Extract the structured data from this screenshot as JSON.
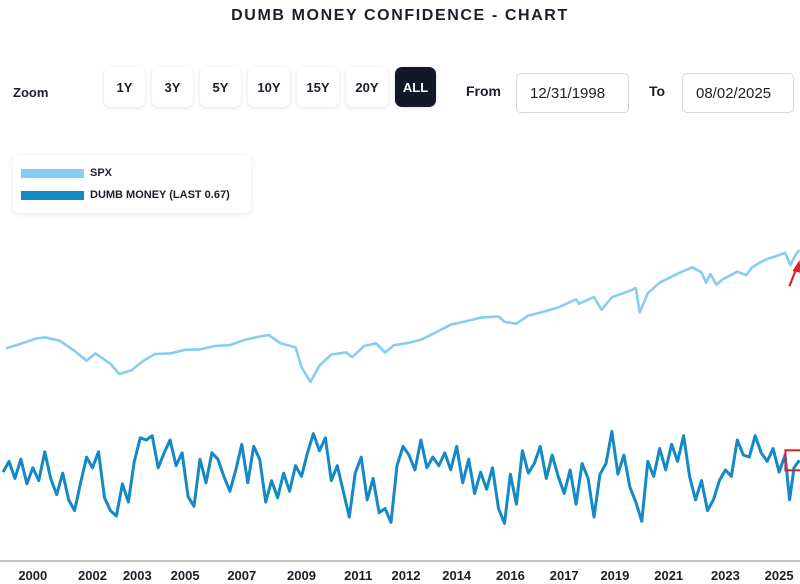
{
  "page": {
    "title": "DUMB MONEY CONFIDENCE - CHART"
  },
  "toolbar": {
    "zoom_label": "Zoom",
    "zoom_buttons": [
      {
        "label": "1Y",
        "active": false
      },
      {
        "label": "3Y",
        "active": false
      },
      {
        "label": "5Y",
        "active": false
      },
      {
        "label": "10Y",
        "active": false
      },
      {
        "label": "15Y",
        "active": false
      },
      {
        "label": "20Y",
        "active": false
      },
      {
        "label": "ALL",
        "active": true
      }
    ],
    "from_label": "From",
    "from_value": "12/31/1998",
    "to_label": "To",
    "to_value": "08/02/2025"
  },
  "colors": {
    "spx": "#87cdf0",
    "dumb_money": "#1589c5",
    "highlight": "#d9202e",
    "active_button": "#111827"
  },
  "chart_data": {
    "type": "line",
    "title": "DUMB MONEY CONFIDENCE - CHART",
    "x_range": [
      1998.8,
      2025.6
    ],
    "x_ticks": [
      "2000",
      "2002",
      "2003",
      "2005",
      "2007",
      "2009",
      "2011",
      "2012",
      "2014",
      "2016",
      "2017",
      "2019",
      "2021",
      "2023",
      "2025"
    ],
    "x_tick_values": [
      1999.9,
      2001.9,
      2003.4,
      2005.0,
      2006.9,
      2008.9,
      2010.8,
      2012.4,
      2014.1,
      2015.9,
      2017.7,
      2019.4,
      2021.2,
      2023.1,
      2024.9
    ],
    "series": [
      {
        "name": "SPX",
        "legend": "SPX",
        "scale": "log",
        "points": [
          [
            1999.0,
            1230
          ],
          [
            1999.5,
            1330
          ],
          [
            2000.0,
            1450
          ],
          [
            2000.3,
            1480
          ],
          [
            2000.8,
            1400
          ],
          [
            2001.3,
            1180
          ],
          [
            2001.7,
            1000
          ],
          [
            2002.0,
            1130
          ],
          [
            2002.5,
            950
          ],
          [
            2002.8,
            800
          ],
          [
            2003.2,
            850
          ],
          [
            2003.6,
            1000
          ],
          [
            2004.0,
            1120
          ],
          [
            2004.5,
            1130
          ],
          [
            2005.0,
            1200
          ],
          [
            2005.5,
            1210
          ],
          [
            2006.0,
            1280
          ],
          [
            2006.5,
            1300
          ],
          [
            2007.0,
            1420
          ],
          [
            2007.5,
            1500
          ],
          [
            2007.8,
            1540
          ],
          [
            2008.2,
            1340
          ],
          [
            2008.7,
            1250
          ],
          [
            2008.9,
            900
          ],
          [
            2009.2,
            700
          ],
          [
            2009.5,
            920
          ],
          [
            2009.9,
            1110
          ],
          [
            2010.4,
            1150
          ],
          [
            2010.6,
            1060
          ],
          [
            2011.0,
            1280
          ],
          [
            2011.4,
            1340
          ],
          [
            2011.7,
            1150
          ],
          [
            2012.0,
            1300
          ],
          [
            2012.5,
            1350
          ],
          [
            2012.9,
            1420
          ],
          [
            2013.5,
            1650
          ],
          [
            2013.9,
            1830
          ],
          [
            2014.5,
            1960
          ],
          [
            2014.9,
            2060
          ],
          [
            2015.5,
            2100
          ],
          [
            2015.7,
            1920
          ],
          [
            2016.1,
            1860
          ],
          [
            2016.5,
            2130
          ],
          [
            2016.9,
            2240
          ],
          [
            2017.5,
            2440
          ],
          [
            2017.9,
            2670
          ],
          [
            2018.1,
            2800
          ],
          [
            2018.2,
            2600
          ],
          [
            2018.7,
            2910
          ],
          [
            2018.95,
            2350
          ],
          [
            2019.3,
            2900
          ],
          [
            2019.9,
            3230
          ],
          [
            2020.1,
            3380
          ],
          [
            2020.23,
            2250
          ],
          [
            2020.5,
            3100
          ],
          [
            2020.9,
            3700
          ],
          [
            2021.5,
            4300
          ],
          [
            2021.99,
            4790
          ],
          [
            2022.3,
            4400
          ],
          [
            2022.45,
            3700
          ],
          [
            2022.6,
            4280
          ],
          [
            2022.8,
            3580
          ],
          [
            2023.0,
            3900
          ],
          [
            2023.5,
            4450
          ],
          [
            2023.8,
            4200
          ],
          [
            2024.0,
            4800
          ],
          [
            2024.3,
            5250
          ],
          [
            2024.5,
            5500
          ],
          [
            2024.9,
            5880
          ],
          [
            2025.1,
            6100
          ],
          [
            2025.28,
            4980
          ],
          [
            2025.45,
            5900
          ],
          [
            2025.58,
            6390
          ]
        ]
      },
      {
        "name": "DUMB MONEY",
        "legend": "DUMB MONEY (LAST 0.67)",
        "last": 0.67,
        "y_range": [
          0,
          1
        ],
        "points": [
          [
            1998.9,
            0.56
          ],
          [
            1999.1,
            0.66
          ],
          [
            1999.3,
            0.5
          ],
          [
            1999.5,
            0.68
          ],
          [
            1999.7,
            0.45
          ],
          [
            1999.9,
            0.6
          ],
          [
            2000.1,
            0.48
          ],
          [
            2000.3,
            0.75
          ],
          [
            2000.5,
            0.5
          ],
          [
            2000.7,
            0.35
          ],
          [
            2000.9,
            0.55
          ],
          [
            2001.1,
            0.3
          ],
          [
            2001.3,
            0.2
          ],
          [
            2001.5,
            0.46
          ],
          [
            2001.7,
            0.7
          ],
          [
            2001.9,
            0.6
          ],
          [
            2002.1,
            0.75
          ],
          [
            2002.3,
            0.32
          ],
          [
            2002.5,
            0.2
          ],
          [
            2002.7,
            0.15
          ],
          [
            2002.9,
            0.45
          ],
          [
            2003.1,
            0.28
          ],
          [
            2003.3,
            0.66
          ],
          [
            2003.5,
            0.88
          ],
          [
            2003.7,
            0.86
          ],
          [
            2003.9,
            0.9
          ],
          [
            2004.1,
            0.6
          ],
          [
            2004.3,
            0.74
          ],
          [
            2004.5,
            0.86
          ],
          [
            2004.7,
            0.62
          ],
          [
            2004.9,
            0.74
          ],
          [
            2005.1,
            0.33
          ],
          [
            2005.3,
            0.24
          ],
          [
            2005.5,
            0.68
          ],
          [
            2005.7,
            0.46
          ],
          [
            2005.9,
            0.74
          ],
          [
            2006.1,
            0.68
          ],
          [
            2006.3,
            0.52
          ],
          [
            2006.5,
            0.38
          ],
          [
            2006.7,
            0.58
          ],
          [
            2006.9,
            0.82
          ],
          [
            2007.1,
            0.46
          ],
          [
            2007.3,
            0.8
          ],
          [
            2007.5,
            0.68
          ],
          [
            2007.7,
            0.28
          ],
          [
            2007.9,
            0.48
          ],
          [
            2008.1,
            0.32
          ],
          [
            2008.3,
            0.55
          ],
          [
            2008.5,
            0.38
          ],
          [
            2008.7,
            0.62
          ],
          [
            2008.9,
            0.52
          ],
          [
            2009.1,
            0.74
          ],
          [
            2009.3,
            0.92
          ],
          [
            2009.5,
            0.76
          ],
          [
            2009.7,
            0.88
          ],
          [
            2009.9,
            0.48
          ],
          [
            2010.1,
            0.62
          ],
          [
            2010.3,
            0.38
          ],
          [
            2010.5,
            0.14
          ],
          [
            2010.7,
            0.55
          ],
          [
            2010.9,
            0.7
          ],
          [
            2011.1,
            0.3
          ],
          [
            2011.3,
            0.5
          ],
          [
            2011.5,
            0.18
          ],
          [
            2011.7,
            0.22
          ],
          [
            2011.9,
            0.09
          ],
          [
            2012.1,
            0.62
          ],
          [
            2012.3,
            0.8
          ],
          [
            2012.5,
            0.72
          ],
          [
            2012.7,
            0.58
          ],
          [
            2012.9,
            0.86
          ],
          [
            2013.1,
            0.6
          ],
          [
            2013.3,
            0.7
          ],
          [
            2013.5,
            0.62
          ],
          [
            2013.7,
            0.74
          ],
          [
            2013.9,
            0.58
          ],
          [
            2014.1,
            0.8
          ],
          [
            2014.3,
            0.46
          ],
          [
            2014.5,
            0.68
          ],
          [
            2014.7,
            0.36
          ],
          [
            2014.9,
            0.56
          ],
          [
            2015.1,
            0.4
          ],
          [
            2015.3,
            0.6
          ],
          [
            2015.5,
            0.22
          ],
          [
            2015.7,
            0.08
          ],
          [
            2015.9,
            0.54
          ],
          [
            2016.1,
            0.26
          ],
          [
            2016.3,
            0.76
          ],
          [
            2016.5,
            0.55
          ],
          [
            2016.7,
            0.64
          ],
          [
            2016.9,
            0.8
          ],
          [
            2017.1,
            0.5
          ],
          [
            2017.3,
            0.72
          ],
          [
            2017.5,
            0.52
          ],
          [
            2017.7,
            0.36
          ],
          [
            2017.9,
            0.58
          ],
          [
            2018.1,
            0.26
          ],
          [
            2018.3,
            0.64
          ],
          [
            2018.5,
            0.5
          ],
          [
            2018.7,
            0.14
          ],
          [
            2018.9,
            0.54
          ],
          [
            2019.1,
            0.64
          ],
          [
            2019.3,
            0.94
          ],
          [
            2019.5,
            0.54
          ],
          [
            2019.7,
            0.72
          ],
          [
            2019.9,
            0.42
          ],
          [
            2020.1,
            0.28
          ],
          [
            2020.3,
            0.1
          ],
          [
            2020.5,
            0.66
          ],
          [
            2020.7,
            0.52
          ],
          [
            2020.9,
            0.78
          ],
          [
            2021.1,
            0.58
          ],
          [
            2021.3,
            0.82
          ],
          [
            2021.5,
            0.66
          ],
          [
            2021.7,
            0.9
          ],
          [
            2021.9,
            0.52
          ],
          [
            2022.1,
            0.3
          ],
          [
            2022.3,
            0.48
          ],
          [
            2022.5,
            0.2
          ],
          [
            2022.7,
            0.3
          ],
          [
            2022.9,
            0.48
          ],
          [
            2023.1,
            0.58
          ],
          [
            2023.3,
            0.52
          ],
          [
            2023.5,
            0.86
          ],
          [
            2023.7,
            0.72
          ],
          [
            2023.9,
            0.7
          ],
          [
            2024.1,
            0.9
          ],
          [
            2024.3,
            0.74
          ],
          [
            2024.5,
            0.66
          ],
          [
            2024.7,
            0.78
          ],
          [
            2024.9,
            0.56
          ],
          [
            2025.1,
            0.72
          ],
          [
            2025.25,
            0.3
          ],
          [
            2025.4,
            0.6
          ],
          [
            2025.58,
            0.67
          ]
        ]
      }
    ],
    "annotations": [
      {
        "type": "arrow",
        "series": "SPX",
        "near": "latest"
      },
      {
        "type": "box",
        "series": "DUMB MONEY",
        "near": "latest"
      }
    ],
    "legend_position": "top-left",
    "grid": false
  }
}
